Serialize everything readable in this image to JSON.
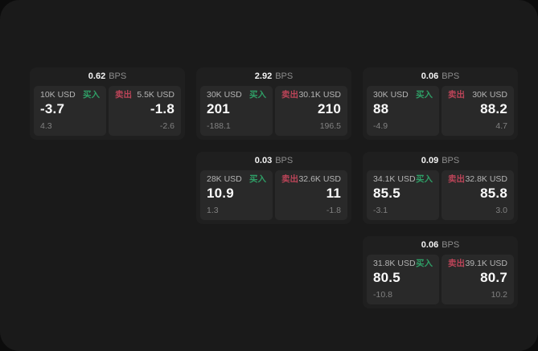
{
  "app": {
    "panel_bg": "#1a1a1a",
    "card_bg": "#1f1f1f",
    "tile_bg": "#292929"
  },
  "colors": {
    "buy_green": "#2f9e66",
    "sell_red": "#bb4458",
    "price_white": "#fafafa",
    "muted_gray": "#8d8d8d"
  },
  "labels": {
    "bps_unit": "BPS",
    "buy": "买入",
    "sell": "卖出"
  },
  "cards": [
    {
      "bps": "0.62",
      "grid": {
        "col": 1,
        "row": 1
      },
      "buy": {
        "notional": "10K USD",
        "price": "-3.7",
        "change": "4.3"
      },
      "sell": {
        "notional": "5.5K USD",
        "price": "-1.8",
        "change": "-2.6"
      }
    },
    {
      "bps": "2.92",
      "grid": {
        "col": 2,
        "row": 1
      },
      "buy": {
        "notional": "30K USD",
        "price": "201",
        "change": "-188.1"
      },
      "sell": {
        "notional": "30.1K USD",
        "price": "210",
        "change": "196.5"
      }
    },
    {
      "bps": "0.06",
      "grid": {
        "col": 3,
        "row": 1
      },
      "buy": {
        "notional": "30K USD",
        "price": "88",
        "change": "-4.9"
      },
      "sell": {
        "notional": "30K USD",
        "price": "88.2",
        "change": "4.7"
      }
    },
    {
      "bps": "0.03",
      "grid": {
        "col": 2,
        "row": 2
      },
      "buy": {
        "notional": "28K USD",
        "price": "10.9",
        "change": "1.3"
      },
      "sell": {
        "notional": "32.6K USD",
        "price": "11",
        "change": "-1.8"
      }
    },
    {
      "bps": "0.09",
      "grid": {
        "col": 3,
        "row": 2
      },
      "buy": {
        "notional": "34.1K USD",
        "price": "85.5",
        "change": "-3.1"
      },
      "sell": {
        "notional": "32.8K USD",
        "price": "85.8",
        "change": "3.0"
      }
    },
    {
      "bps": "0.06",
      "grid": {
        "col": 3,
        "row": 3
      },
      "buy": {
        "notional": "31.8K USD",
        "price": "80.5",
        "change": "-10.8"
      },
      "sell": {
        "notional": "39.1K USD",
        "price": "80.7",
        "change": "10.2"
      }
    }
  ]
}
